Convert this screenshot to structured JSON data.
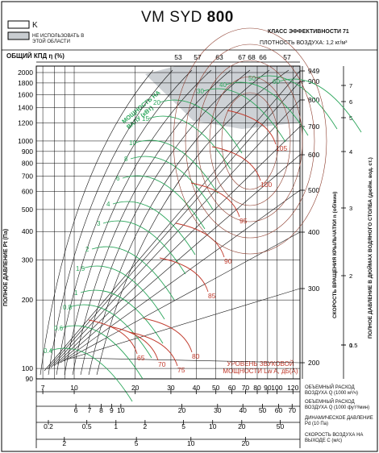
{
  "title": {
    "prefix": "VM SYD",
    "size": "800"
  },
  "efficiency_class": "КЛАСС ЭФФЕКТИВНОСТИ 71",
  "air_density": "ПЛОТНОСТЬ ВОЗДУХА: 1,2 кг/м³",
  "legend": {
    "k_label": "K",
    "not_used_label": "НЕ ИСПОЛЬЗОВАТЬ В ЭТОЙ ОБЛАСТИ"
  },
  "colors": {
    "efficiency": "#222222",
    "power": "#2aa55a",
    "sound": "#c0392b",
    "forbidden": "#c8ccd0"
  },
  "chart_data": {
    "type": "line",
    "efficiency_label": "ОБЩИЙ КПД η (%)",
    "efficiency_values": [
      "53",
      "57",
      "63",
      "67",
      "68",
      "66",
      "57"
    ],
    "y_left": {
      "label": "ПОЛНОЕ ДАВЛЕНИЕ Pt (Па)",
      "scale": "log",
      "ylim": [
        90,
        2000
      ],
      "ticks": [
        "2000",
        "1800",
        "1600",
        "1400",
        "1200",
        "1000",
        "900",
        "800",
        "700",
        "600",
        "500",
        "400",
        "300",
        "200",
        "100",
        "90"
      ]
    },
    "y_right_speed": {
      "label": "СКОРОСТЬ ВРАЩЕНИЯ КРЫЛЬЧАТКИ n (об/мин)",
      "ticks": [
        "949",
        "900",
        "800",
        "700",
        "600",
        "500",
        "400",
        "300",
        "200"
      ]
    },
    "y_right_inch": {
      "label": "ПОЛНОЕ ДАВЛЕНИЕ В ДЮЙМАХ ВОДЯНОГО СТОЛБА (дюйм. вод. ст.)",
      "ticks": [
        "7",
        "6",
        "5",
        "4",
        "3",
        "2",
        "1",
        "0.5"
      ]
    },
    "power_label": "МОЩНОСТЬ НА ВАЛУ (кВт)",
    "power_values": [
      "0.4",
      "0.6",
      "0.8",
      "1",
      "1.5",
      "2",
      "3",
      "4",
      "6",
      "8",
      "10",
      "15",
      "20",
      "30",
      "40",
      "50",
      "60"
    ],
    "sound_label": "УРОВЕНЬ ЗВУКОВОЙ МОЩНОСТИ Lw A, дБ(A)",
    "sound_values": [
      "65",
      "70",
      "75",
      "80",
      "85",
      "90",
      "95",
      "100",
      "105"
    ],
    "x_axes": [
      {
        "label": "ОБЪЕМНЫЙ РАСХОД ВОЗДУХА Q (1000 м³/ч)",
        "ticks": [
          "7",
          "10",
          "20",
          "30",
          "40",
          "50",
          "60",
          "70",
          "80",
          "90",
          "100",
          "120"
        ]
      },
      {
        "label": "ОБЪЕМНЫЙ РАСХОД ВОЗДУХА Q (1000 фут³/мин)",
        "ticks": [
          "6",
          "7",
          "8",
          "9",
          "10",
          "20",
          "30",
          "40",
          "50",
          "60",
          "70"
        ]
      },
      {
        "label": "ДИНАМИЧЕСКОЕ ДАВЛЕНИЕ Pd (10 Па)",
        "ticks": [
          "0.2",
          "0.5",
          "1",
          "2",
          "5",
          "10",
          "20",
          "50"
        ]
      },
      {
        "label": "СКОРОСТЬ ВОЗДУХА НА ВЫХОДЕ C (м/с)",
        "ticks": [
          "2",
          "5",
          "10",
          "20"
        ]
      }
    ],
    "xlim": [
      6.5,
      130
    ],
    "grid": true
  }
}
